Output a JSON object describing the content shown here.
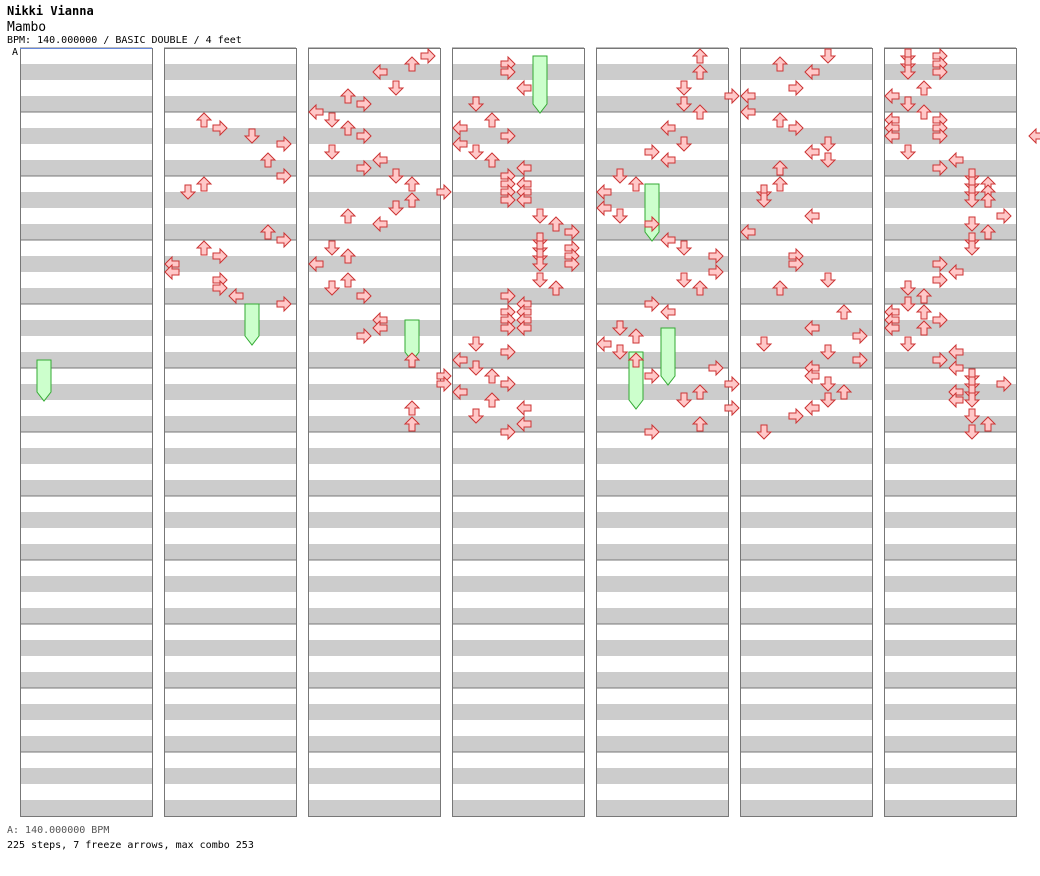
{
  "header": {
    "artist": "Nikki Vianna",
    "song": "Mambo",
    "info": "BPM: 140.000000 / BASIC DOUBLE / 4 feet",
    "bpm_marker": "A"
  },
  "footer": {
    "bpm_line": "A: 140.000000 BPM",
    "stats": "225 steps, 7 freeze arrows, max combo 253"
  },
  "colors": {
    "band": "#cccccc",
    "border": "#777777",
    "arrow_fill": "#ffc8c8",
    "arrow_stroke": "#cc3333",
    "freeze_fill": "#ccffcc",
    "freeze_stroke": "#33aa33",
    "marker_line": "#6688dd"
  },
  "chart_data": {
    "type": "step-chart",
    "columns": 7,
    "measures_per_column": 12,
    "rows_per_measure": 8,
    "lanes": [
      "L1",
      "D1",
      "U1",
      "R1",
      "L2",
      "D2",
      "U2",
      "R2"
    ],
    "notes": [
      [
        1,
        8,
        2
      ],
      [
        1,
        9,
        3
      ],
      [
        1,
        10,
        5
      ],
      [
        1,
        11,
        7
      ],
      [
        1,
        13,
        6
      ],
      [
        1,
        15,
        7
      ],
      [
        1,
        16,
        2
      ],
      [
        1,
        17,
        1
      ],
      [
        1,
        22,
        6
      ],
      [
        1,
        23,
        7
      ],
      [
        1,
        24,
        2
      ],
      [
        1,
        25,
        3
      ],
      [
        1,
        26,
        0
      ],
      [
        1,
        27,
        0
      ],
      [
        1,
        28,
        3
      ],
      [
        1,
        29,
        3
      ],
      [
        1,
        30,
        4
      ],
      [
        1,
        31,
        7
      ],
      [
        2,
        0,
        7
      ],
      [
        2,
        1,
        6
      ],
      [
        2,
        2,
        4
      ],
      [
        2,
        4,
        5
      ],
      [
        2,
        5,
        2
      ],
      [
        2,
        6,
        3
      ],
      [
        2,
        7,
        0
      ],
      [
        2,
        8,
        1
      ],
      [
        2,
        9,
        2
      ],
      [
        2,
        10,
        3
      ],
      [
        2,
        12,
        1
      ],
      [
        2,
        13,
        4
      ],
      [
        2,
        14,
        3
      ],
      [
        2,
        15,
        5
      ],
      [
        2,
        16,
        6
      ],
      [
        2,
        17,
        8
      ],
      [
        2,
        18,
        6
      ],
      [
        2,
        19,
        5
      ],
      [
        2,
        20,
        2
      ],
      [
        2,
        21,
        4
      ],
      [
        2,
        24,
        1
      ],
      [
        2,
        25,
        2
      ],
      [
        2,
        26,
        0
      ],
      [
        2,
        28,
        2
      ],
      [
        2,
        29,
        1
      ],
      [
        2,
        30,
        3
      ],
      [
        2,
        33,
        4
      ],
      [
        2,
        34,
        4
      ],
      [
        2,
        35,
        3
      ],
      [
        2,
        38,
        6
      ],
      [
        2,
        40,
        8
      ],
      [
        2,
        41,
        8
      ],
      [
        2,
        44,
        6
      ],
      [
        2,
        46,
        6
      ],
      [
        3,
        1,
        3
      ],
      [
        3,
        2,
        3
      ],
      [
        3,
        4,
        4
      ],
      [
        3,
        6,
        1
      ],
      [
        3,
        8,
        2
      ],
      [
        3,
        9,
        0
      ],
      [
        3,
        10,
        3
      ],
      [
        3,
        11,
        0
      ],
      [
        3,
        12,
        1
      ],
      [
        3,
        13,
        2
      ],
      [
        3,
        14,
        4
      ],
      [
        3,
        15,
        3
      ],
      [
        3,
        16,
        3
      ],
      [
        3,
        16,
        4
      ],
      [
        3,
        17,
        3
      ],
      [
        3,
        17,
        4
      ],
      [
        3,
        18,
        3
      ],
      [
        3,
        18,
        4
      ],
      [
        3,
        20,
        5
      ],
      [
        3,
        21,
        6
      ],
      [
        3,
        22,
        7
      ],
      [
        3,
        23,
        5
      ],
      [
        3,
        24,
        5
      ],
      [
        3,
        24,
        7
      ],
      [
        3,
        25,
        5
      ],
      [
        3,
        25,
        7
      ],
      [
        3,
        26,
        5
      ],
      [
        3,
        26,
        7
      ],
      [
        3,
        28,
        5
      ],
      [
        3,
        29,
        6
      ],
      [
        3,
        30,
        3
      ],
      [
        3,
        31,
        4
      ],
      [
        3,
        32,
        3
      ],
      [
        3,
        32,
        4
      ],
      [
        3,
        33,
        3
      ],
      [
        3,
        33,
        4
      ],
      [
        3,
        34,
        3
      ],
      [
        3,
        34,
        4
      ],
      [
        3,
        36,
        1
      ],
      [
        3,
        37,
        3
      ],
      [
        3,
        38,
        0
      ],
      [
        3,
        39,
        1
      ],
      [
        3,
        40,
        2
      ],
      [
        3,
        41,
        3
      ],
      [
        3,
        42,
        0
      ],
      [
        3,
        43,
        2
      ],
      [
        3,
        44,
        4
      ],
      [
        3,
        45,
        1
      ],
      [
        3,
        46,
        4
      ],
      [
        3,
        47,
        3
      ],
      [
        4,
        0,
        6
      ],
      [
        4,
        2,
        6
      ],
      [
        4,
        4,
        5
      ],
      [
        4,
        5,
        8
      ],
      [
        4,
        6,
        5
      ],
      [
        4,
        7,
        6
      ],
      [
        4,
        9,
        4
      ],
      [
        4,
        11,
        5
      ],
      [
        4,
        12,
        3
      ],
      [
        4,
        13,
        4
      ],
      [
        4,
        15,
        1
      ],
      [
        4,
        16,
        2
      ],
      [
        4,
        17,
        0
      ],
      [
        4,
        19,
        0
      ],
      [
        4,
        20,
        1
      ],
      [
        4,
        21,
        3
      ],
      [
        4,
        23,
        4
      ],
      [
        4,
        24,
        5
      ],
      [
        4,
        25,
        7
      ],
      [
        4,
        27,
        7
      ],
      [
        4,
        28,
        5
      ],
      [
        4,
        29,
        6
      ],
      [
        4,
        31,
        3
      ],
      [
        4,
        32,
        4
      ],
      [
        4,
        34,
        1
      ],
      [
        4,
        35,
        2
      ],
      [
        4,
        36,
        0
      ],
      [
        4,
        37,
        1
      ],
      [
        4,
        38,
        2
      ],
      [
        4,
        39,
        7
      ],
      [
        4,
        40,
        3
      ],
      [
        4,
        41,
        8
      ],
      [
        4,
        42,
        6
      ],
      [
        4,
        43,
        5
      ],
      [
        4,
        44,
        8
      ],
      [
        4,
        46,
        6
      ],
      [
        4,
        47,
        3
      ],
      [
        5,
        0,
        5
      ],
      [
        5,
        1,
        2
      ],
      [
        5,
        2,
        4
      ],
      [
        5,
        4,
        3
      ],
      [
        5,
        5,
        0
      ],
      [
        5,
        7,
        0
      ],
      [
        5,
        8,
        2
      ],
      [
        5,
        9,
        3
      ],
      [
        5,
        11,
        5
      ],
      [
        5,
        12,
        4
      ],
      [
        5,
        13,
        5
      ],
      [
        5,
        14,
        2
      ],
      [
        5,
        16,
        2
      ],
      [
        5,
        17,
        1
      ],
      [
        5,
        18,
        1
      ],
      [
        5,
        20,
        4
      ],
      [
        5,
        22,
        0
      ],
      [
        5,
        25,
        3
      ],
      [
        5,
        26,
        3
      ],
      [
        5,
        28,
        5
      ],
      [
        5,
        29,
        2
      ],
      [
        5,
        32,
        6
      ],
      [
        5,
        34,
        4
      ],
      [
        5,
        35,
        7
      ],
      [
        5,
        36,
        1
      ],
      [
        5,
        37,
        5
      ],
      [
        5,
        38,
        7
      ],
      [
        5,
        39,
        4
      ],
      [
        5,
        40,
        4
      ],
      [
        5,
        41,
        5
      ],
      [
        5,
        42,
        6
      ],
      [
        5,
        43,
        5
      ],
      [
        5,
        44,
        4
      ],
      [
        5,
        45,
        3
      ],
      [
        5,
        47,
        1
      ],
      [
        6,
        0,
        1
      ],
      [
        6,
        0,
        3
      ],
      [
        6,
        1,
        1
      ],
      [
        6,
        1,
        3
      ],
      [
        6,
        2,
        1
      ],
      [
        6,
        2,
        3
      ],
      [
        6,
        4,
        2
      ],
      [
        6,
        5,
        0
      ],
      [
        6,
        6,
        1
      ],
      [
        6,
        7,
        2
      ],
      [
        6,
        8,
        0
      ],
      [
        6,
        8,
        3
      ],
      [
        6,
        9,
        0
      ],
      [
        6,
        9,
        3
      ],
      [
        6,
        10,
        0
      ],
      [
        6,
        10,
        3
      ],
      [
        6,
        12,
        1
      ],
      [
        6,
        13,
        4
      ],
      [
        6,
        14,
        3
      ],
      [
        6,
        15,
        5
      ],
      [
        6,
        16,
        5
      ],
      [
        6,
        16,
        6
      ],
      [
        6,
        17,
        5
      ],
      [
        6,
        17,
        6
      ],
      [
        6,
        18,
        5
      ],
      [
        6,
        18,
        6
      ],
      [
        6,
        20,
        7
      ],
      [
        6,
        21,
        5
      ],
      [
        6,
        22,
        6
      ],
      [
        6,
        23,
        5
      ],
      [
        6,
        24,
        5
      ],
      [
        6,
        26,
        3
      ],
      [
        6,
        27,
        4
      ],
      [
        6,
        28,
        3
      ],
      [
        6,
        29,
        1
      ],
      [
        6,
        30,
        2
      ],
      [
        6,
        31,
        1
      ],
      [
        6,
        32,
        0
      ],
      [
        6,
        32,
        2
      ],
      [
        6,
        33,
        0
      ],
      [
        6,
        33,
        3
      ],
      [
        6,
        34,
        0
      ],
      [
        6,
        34,
        2
      ],
      [
        6,
        36,
        1
      ],
      [
        6,
        37,
        4
      ],
      [
        6,
        38,
        3
      ],
      [
        6,
        39,
        4
      ],
      [
        6,
        40,
        5
      ],
      [
        6,
        41,
        5
      ],
      [
        6,
        41,
        7
      ],
      [
        6,
        42,
        4
      ],
      [
        6,
        42,
        5
      ],
      [
        6,
        43,
        4
      ],
      [
        6,
        43,
        5
      ],
      [
        6,
        45,
        5
      ],
      [
        6,
        46,
        6
      ],
      [
        6,
        47,
        5
      ],
      [
        7,
        0,
        6
      ],
      [
        7,
        0,
        7
      ],
      [
        7,
        1,
        7
      ],
      [
        7,
        2,
        6
      ],
      [
        7,
        2,
        7
      ],
      [
        7,
        4,
        6
      ],
      [
        7,
        5,
        7
      ],
      [
        7,
        6,
        3
      ],
      [
        7,
        7,
        4
      ],
      [
        7,
        8,
        1
      ],
      [
        7,
        9,
        2
      ],
      [
        7,
        10,
        0
      ],
      [
        7,
        11,
        3
      ],
      [
        7,
        12,
        1
      ],
      [
        7,
        13,
        4
      ],
      [
        7,
        14,
        3
      ],
      [
        7,
        15,
        3
      ],
      [
        7,
        15,
        4
      ]
    ],
    "freezes": [
      [
        3,
        0,
        5,
        3
      ],
      [
        1,
        31,
        5,
        2
      ],
      [
        2,
        33,
        6,
        2
      ],
      [
        0,
        38,
        1,
        2
      ],
      [
        4,
        37,
        2,
        3
      ],
      [
        4,
        16,
        3,
        3
      ],
      [
        4,
        34,
        4,
        3
      ]
    ],
    "note_shapes": [
      "left",
      "down",
      "up",
      "right",
      "left",
      "down",
      "up",
      "right"
    ]
  }
}
